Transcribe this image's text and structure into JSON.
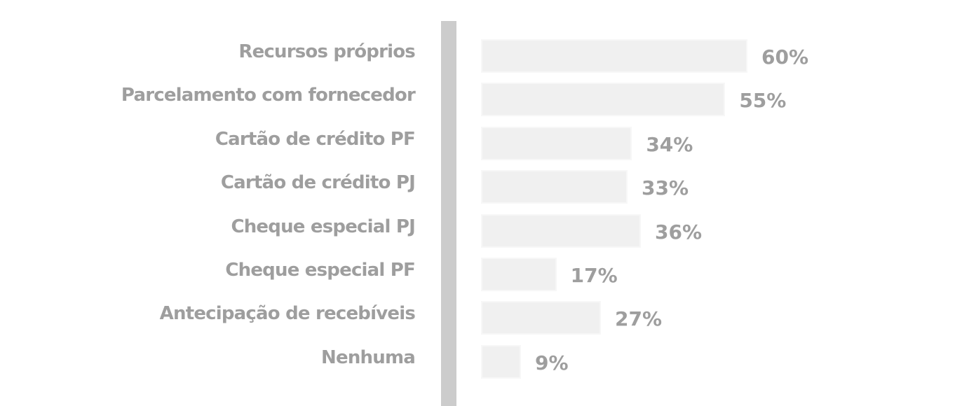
{
  "chart_data": {
    "type": "bar",
    "orientation": "horizontal",
    "categories": [
      "Recursos próprios",
      "Parcelamento com fornecedor",
      "Cartão de crédito PF",
      "Cartão de crédito PJ",
      "Cheque especial PJ",
      "Cheque especial PF",
      "Antecipação de recebíveis",
      "Nenhuma"
    ],
    "values": [
      60,
      55,
      34,
      33,
      36,
      17,
      27,
      9
    ],
    "value_labels": [
      "60%",
      "55%",
      "34%",
      "33%",
      "36%",
      "17%",
      "27%",
      "9%"
    ],
    "title": "",
    "xlabel": "",
    "ylabel": "",
    "xlim": [
      0,
      100
    ],
    "grid": false,
    "legend": "none",
    "colors": {
      "bar": "#f0f0f0",
      "bar_border": "#f7f7f7",
      "axis": "#cccccc",
      "text": "#9e9e9e"
    }
  }
}
